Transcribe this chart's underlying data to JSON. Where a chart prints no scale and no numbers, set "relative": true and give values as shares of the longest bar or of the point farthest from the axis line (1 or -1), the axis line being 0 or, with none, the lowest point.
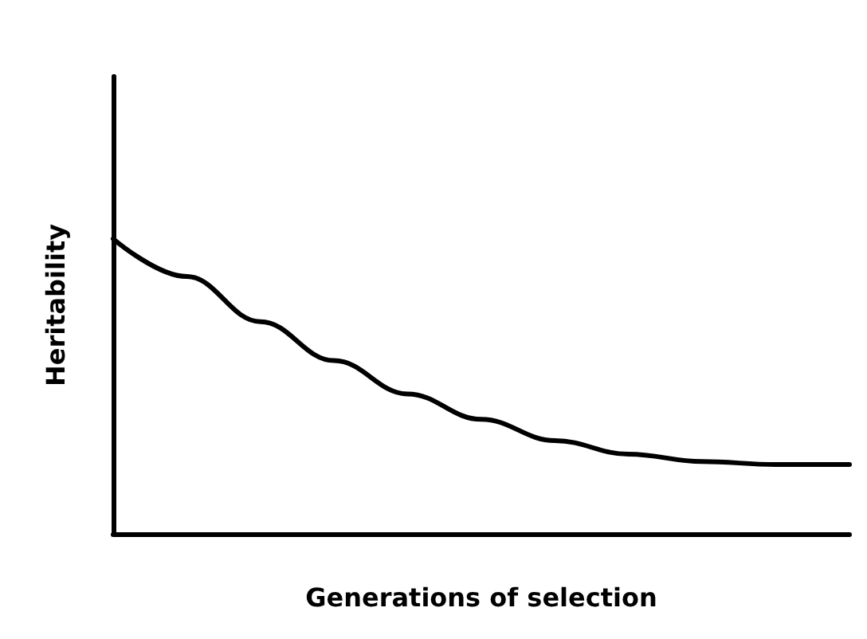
{
  "chart_data": {
    "type": "line",
    "xlabel": "Generations of selection",
    "ylabel": "Heritability",
    "relative": true,
    "categories": [
      null,
      null,
      null,
      null,
      null,
      null,
      null,
      null,
      null,
      null,
      null
    ],
    "values": [
      1,
      0.872,
      0.719,
      0.587,
      0.474,
      0.388,
      0.316,
      0.27,
      0.245,
      0.235,
      0.235
    ],
    "color": "#000000",
    "marker": "none",
    "grid": false
  }
}
